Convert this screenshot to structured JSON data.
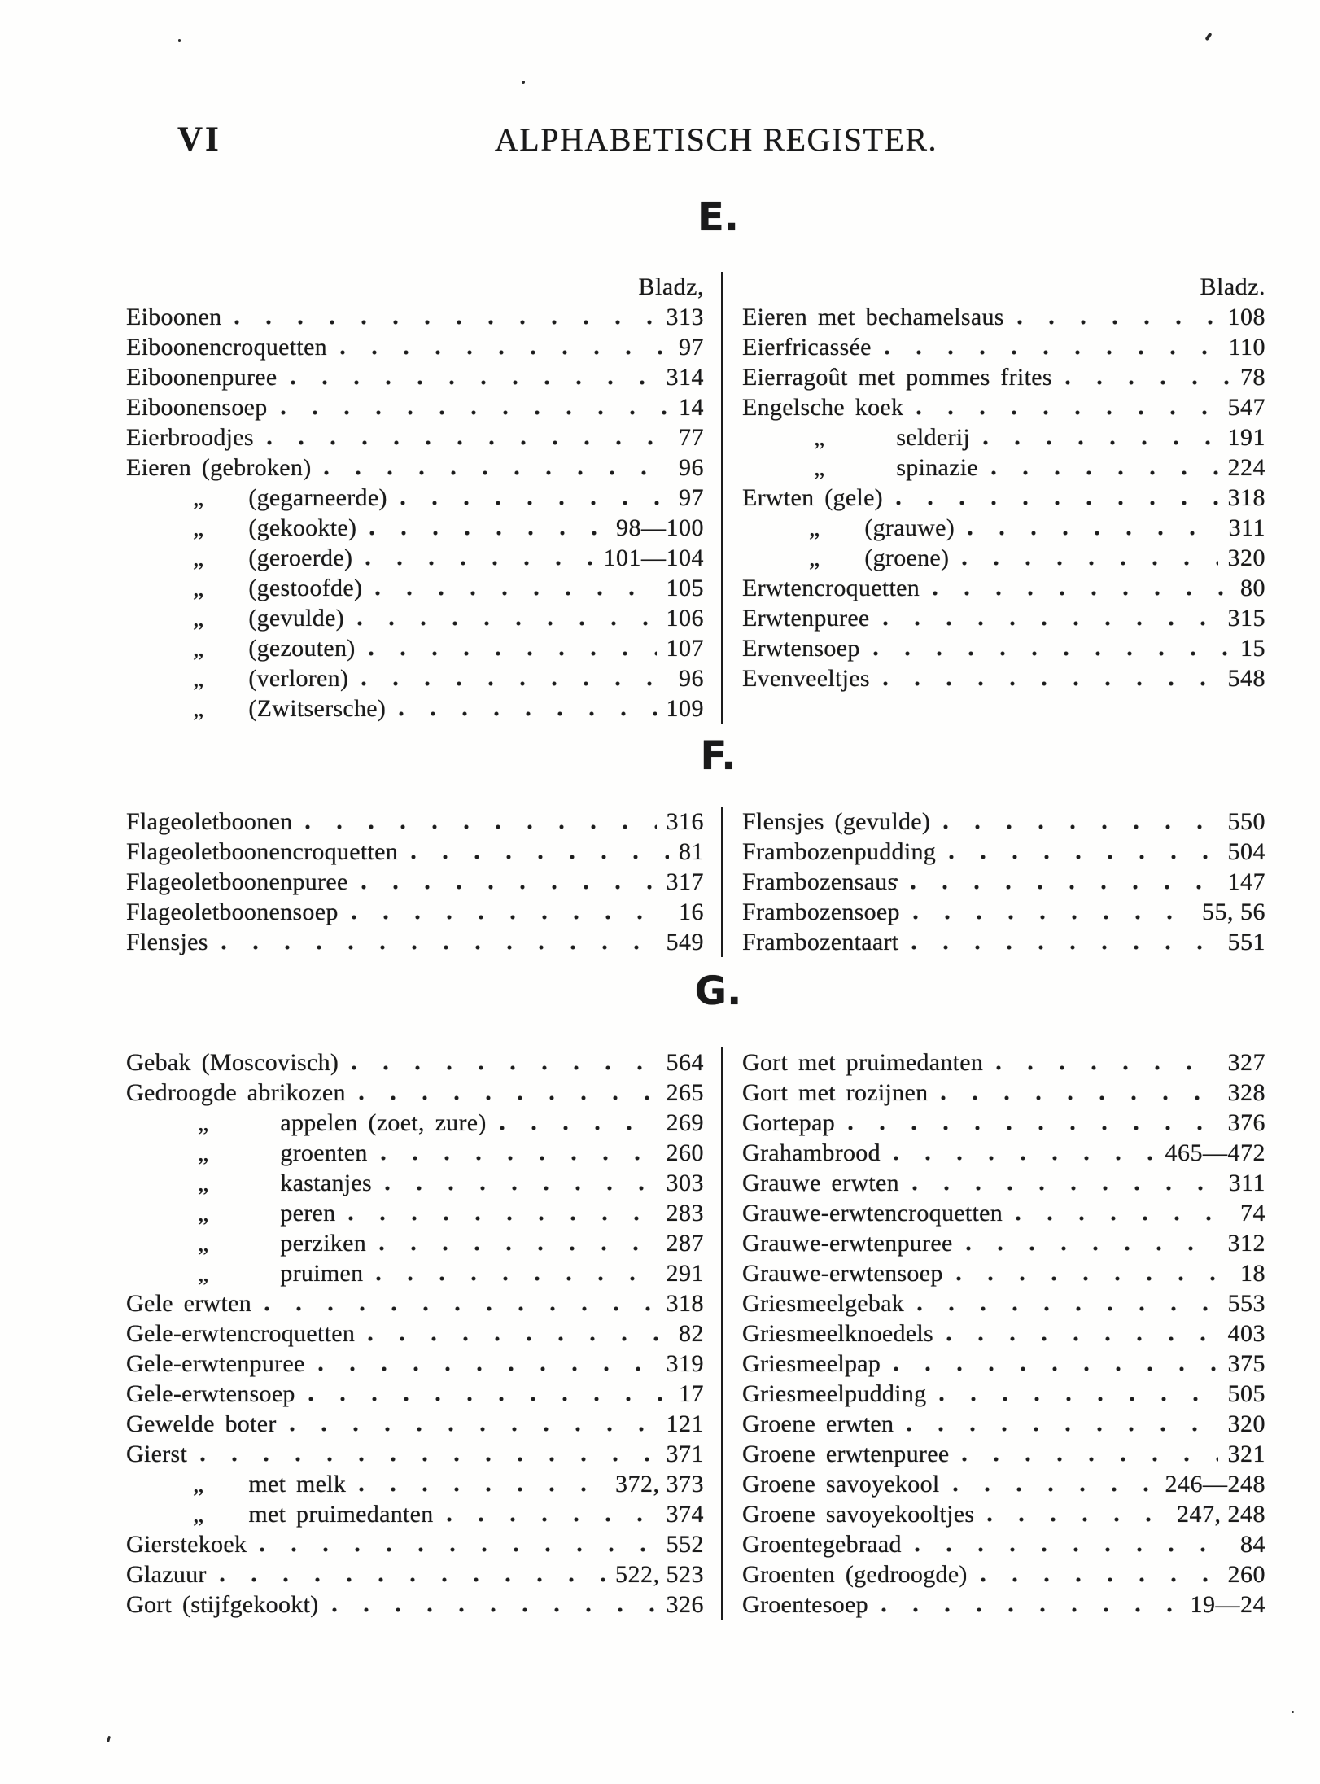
{
  "page": {
    "number": "VI",
    "title": "ALPHABETISCH REGISTER.",
    "quote_char": "„",
    "sections": [
      {
        "letter": "E.",
        "col_header_left": "Bladz,",
        "col_header_right": "Bladz.",
        "left": [
          {
            "label": "Eiboonen",
            "page": "313"
          },
          {
            "label": "Eiboonencroquetten",
            "page": "97"
          },
          {
            "label": "Eiboonenpuree",
            "page": "314"
          },
          {
            "label": "Eiboonensoep",
            "page": "14"
          },
          {
            "label": "Eierbroodjes",
            "page": "77"
          },
          {
            "label": "Eieren (gebroken)",
            "page": "96"
          },
          {
            "q": 1,
            "label": "(gegarneerde)",
            "page": "97"
          },
          {
            "q": 1,
            "label": "(gekookte)",
            "page": "98—100"
          },
          {
            "q": 1,
            "label": "(geroerde)",
            "page": "101—104"
          },
          {
            "q": 1,
            "label": "(gestoofde)",
            "page": "105"
          },
          {
            "q": 1,
            "label": "(gevulde)",
            "page": "106"
          },
          {
            "q": 1,
            "label": "(gezouten)",
            "page": "107"
          },
          {
            "q": 1,
            "label": "(verloren)",
            "page": "96"
          },
          {
            "q": 1,
            "label": "(Zwitsersche)",
            "page": "109"
          }
        ],
        "right": [
          {
            "label": "Eieren met bechamelsaus",
            "page": "108"
          },
          {
            "label": "Eierfricassée",
            "page": "110"
          },
          {
            "label": "Eierragoût met pommes frites",
            "page": "78"
          },
          {
            "label": "Engelsche koek",
            "page": "547"
          },
          {
            "q": 2,
            "label": "selderij",
            "page": "191"
          },
          {
            "q": 2,
            "label": "spinazie",
            "page": "224"
          },
          {
            "label": "Erwten (gele)",
            "page": "318"
          },
          {
            "q": 1,
            "label": "(grauwe)",
            "page": "311"
          },
          {
            "q": 1,
            "label": "(groene)",
            "page": "320"
          },
          {
            "label": "Erwtencroquetten",
            "page": "80"
          },
          {
            "label": "Erwtenpuree",
            "page": "315"
          },
          {
            "label": "Erwtensoep",
            "page": "15"
          },
          {
            "label": "Evenveeltjes",
            "page": "548"
          }
        ]
      },
      {
        "letter": "F.",
        "left": [
          {
            "label": "Flageoletboonen",
            "page": "316"
          },
          {
            "label": "Flageoletboonencroquetten",
            "page": "81"
          },
          {
            "label": "Flageoletboonenpuree",
            "page": "317"
          },
          {
            "label": "Flageoletboonensoep",
            "page": "16"
          },
          {
            "label": "Flensjes",
            "page": "549"
          }
        ],
        "right": [
          {
            "label": "Flensjes (gevulde)",
            "page": "550"
          },
          {
            "label": "Frambozenpudding",
            "page": "504"
          },
          {
            "label": "Frambozensaus",
            "page": "147"
          },
          {
            "label": "Frambozensoep",
            "page": "55, 56"
          },
          {
            "label": "Frambozentaart",
            "page": "551"
          }
        ]
      },
      {
        "letter": "G.",
        "left": [
          {
            "label": "Gebak (Moscovisch)",
            "page": "564"
          },
          {
            "label": "Gedroogde abrikozen",
            "page": "265"
          },
          {
            "q": 2,
            "label": "appelen (zoet, zure)",
            "page": "269"
          },
          {
            "q": 2,
            "label": "groenten",
            "page": "260"
          },
          {
            "q": 2,
            "label": "kastanjes",
            "page": "303"
          },
          {
            "q": 2,
            "label": "peren",
            "page": "283"
          },
          {
            "q": 2,
            "label": "perziken",
            "page": "287"
          },
          {
            "q": 2,
            "label": "pruimen",
            "page": "291"
          },
          {
            "label": "Gele erwten",
            "page": "318"
          },
          {
            "label": "Gele-erwtencroquetten",
            "page": "82"
          },
          {
            "label": "Gele-erwtenpuree",
            "page": "319"
          },
          {
            "label": "Gele-erwtensoep",
            "page": "17"
          },
          {
            "label": "Gewelde boter",
            "page": "121"
          },
          {
            "label": "Gierst",
            "page": "371"
          },
          {
            "q": 1,
            "label": "met melk",
            "page": "372, 373"
          },
          {
            "q": 1,
            "label": "met pruimedanten",
            "page": "374"
          },
          {
            "label": "Gierstekoek",
            "page": "552"
          },
          {
            "label": "Glazuur",
            "page": "522, 523"
          },
          {
            "label": "Gort (stijfgekookt)",
            "page": "326"
          }
        ],
        "right": [
          {
            "label": "Gort met pruimedanten",
            "page": "327"
          },
          {
            "label": "Gort met rozijnen",
            "page": "328"
          },
          {
            "label": "Gortepap",
            "page": "376"
          },
          {
            "label": "Grahambrood",
            "page": "465—472"
          },
          {
            "label": "Grauwe erwten",
            "page": "311"
          },
          {
            "label": "Grauwe-erwtencroquetten",
            "page": "74"
          },
          {
            "label": "Grauwe-erwtenpuree",
            "page": "312"
          },
          {
            "label": "Grauwe-erwtensoep",
            "page": "18"
          },
          {
            "label": "Griesmeelgebak",
            "page": "553"
          },
          {
            "label": "Griesmeelknoedels",
            "page": "403"
          },
          {
            "label": "Griesmeelpap",
            "page": "375"
          },
          {
            "label": "Griesmeelpudding",
            "page": "505"
          },
          {
            "label": "Groene erwten",
            "page": "320"
          },
          {
            "label": "Groene erwtenpuree",
            "page": "321"
          },
          {
            "label": "Groene savoyekool",
            "page": "246—248"
          },
          {
            "label": "Groene savoyekooltjes",
            "page": "247, 248"
          },
          {
            "label": "Groentegebraad",
            "page": "84"
          },
          {
            "label": "Groenten (gedroogde)",
            "page": "260"
          },
          {
            "label": "Groentesoep",
            "page": "19—24"
          }
        ]
      }
    ]
  },
  "colors": {
    "ink": "#1a1a1a",
    "paper": "#fefefd"
  }
}
